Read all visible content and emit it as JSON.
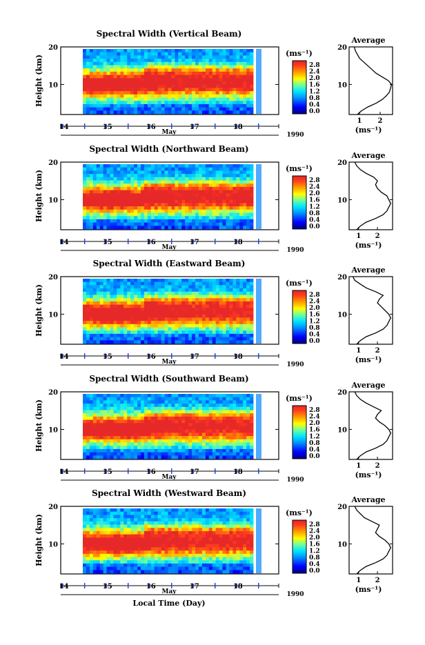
{
  "chart_data": [
    {
      "type": "heatmap",
      "title": "Spectral Width (Vertical Beam)",
      "ylabel": "Height (km)",
      "month_label": "May",
      "year_label": "1990",
      "x_ticks": [
        "14",
        "15",
        "16",
        "17",
        "18"
      ],
      "y_ticks": [
        "20",
        "10"
      ],
      "xlim": [
        14,
        18.5
      ],
      "ylim": [
        2,
        20
      ],
      "grid": false,
      "colorbar_unit": "(ms⁻¹)",
      "colorbar_ticks": [
        "2.8",
        "2.4",
        "2.0",
        "1.6",
        "1.2",
        "0.8",
        "0.4",
        "0.0"
      ],
      "colorbar_range": [
        0,
        2.8
      ],
      "profile": {
        "title": "Average",
        "x_ticks": [
          "1",
          "2"
        ],
        "xlabel": "(ms⁻¹)",
        "xlim": [
          0.5,
          2.6
        ],
        "y_ticks": [
          "20",
          "10"
        ],
        "height": [
          2,
          3,
          4,
          5,
          6,
          7,
          8,
          9,
          10,
          11,
          12,
          13,
          14,
          15,
          16,
          17,
          18,
          19,
          20
        ],
        "value": [
          0.9,
          1.1,
          1.4,
          1.8,
          2.1,
          2.3,
          2.45,
          2.5,
          2.55,
          2.4,
          2.1,
          1.8,
          1.6,
          1.4,
          1.2,
          1.0,
          0.9,
          0.8,
          0.75
        ]
      }
    },
    {
      "type": "heatmap",
      "title": "Spectral Width (Northward Beam)",
      "ylabel": "Height (km)",
      "month_label": "May",
      "year_label": "1990",
      "x_ticks": [
        "14",
        "15",
        "16",
        "17",
        "18"
      ],
      "y_ticks": [
        "20",
        "10"
      ],
      "xlim": [
        14,
        18.5
      ],
      "ylim": [
        2,
        20
      ],
      "grid": false,
      "colorbar_unit": "(ms⁻¹)",
      "colorbar_ticks": [
        "2.8",
        "2.4",
        "2.0",
        "1.6",
        "1.2",
        "0.8",
        "0.4",
        "0.0"
      ],
      "colorbar_range": [
        0,
        2.8
      ],
      "profile": {
        "title": "Average",
        "x_ticks": [
          "1",
          "2"
        ],
        "xlabel": "(ms⁻¹)",
        "xlim": [
          0.5,
          2.8
        ],
        "y_ticks": [
          "20",
          "10"
        ],
        "height": [
          2,
          3,
          4,
          5,
          6,
          7,
          8,
          9,
          10,
          11,
          12,
          13,
          14,
          15,
          16,
          17,
          18,
          19,
          20
        ],
        "value": [
          0.9,
          1.1,
          1.4,
          1.9,
          2.3,
          2.5,
          2.6,
          2.7,
          2.6,
          2.5,
          2.2,
          2.0,
          1.9,
          2.0,
          1.8,
          1.4,
          1.1,
          0.9,
          0.8
        ]
      }
    },
    {
      "type": "heatmap",
      "title": "Spectral Width (Eastward Beam)",
      "ylabel": "Height (km)",
      "month_label": "May",
      "year_label": "1990",
      "x_ticks": [
        "14",
        "15",
        "16",
        "17",
        "18"
      ],
      "y_ticks": [
        "20",
        "10"
      ],
      "xlim": [
        14,
        18.5
      ],
      "ylim": [
        2,
        20
      ],
      "grid": false,
      "colorbar_unit": "(ms⁻¹)",
      "colorbar_ticks": [
        "2.8",
        "2.4",
        "2.0",
        "1.6",
        "1.2",
        "0.8",
        "0.4",
        "0.0"
      ],
      "colorbar_range": [
        0,
        2.8
      ],
      "profile": {
        "title": "Average",
        "x_ticks": [
          "1",
          "2"
        ],
        "xlabel": "(ms⁻¹)",
        "xlim": [
          0.5,
          2.8
        ],
        "y_ticks": [
          "20",
          "10"
        ],
        "height": [
          2,
          3,
          4,
          5,
          6,
          7,
          8,
          9,
          10,
          11,
          12,
          13,
          14,
          15,
          16,
          17,
          18,
          19,
          20
        ],
        "value": [
          0.9,
          1.1,
          1.4,
          1.9,
          2.3,
          2.5,
          2.6,
          2.7,
          2.6,
          2.4,
          2.2,
          2.0,
          2.1,
          2.3,
          1.9,
          1.4,
          1.1,
          0.8,
          0.7
        ]
      }
    },
    {
      "type": "heatmap",
      "title": "Spectral Width (Southward Beam)",
      "ylabel": "Height (km)",
      "month_label": "May",
      "year_label": "1990",
      "x_ticks": [
        "14",
        "15",
        "16",
        "17",
        "18"
      ],
      "y_ticks": [
        "20",
        "10"
      ],
      "xlim": [
        14,
        18.5
      ],
      "ylim": [
        2,
        20
      ],
      "grid": false,
      "colorbar_unit": "(ms⁻¹)",
      "colorbar_ticks": [
        "2.8",
        "2.4",
        "2.0",
        "1.6",
        "1.2",
        "0.8",
        "0.4",
        "0.0"
      ],
      "colorbar_range": [
        0,
        2.8
      ],
      "profile": {
        "title": "Average",
        "x_ticks": [
          "1",
          "2"
        ],
        "xlabel": "(ms⁻¹)",
        "xlim": [
          0.5,
          2.8
        ],
        "y_ticks": [
          "20",
          "10"
        ],
        "height": [
          2,
          3,
          4,
          5,
          6,
          7,
          8,
          9,
          10,
          11,
          12,
          13,
          14,
          15,
          16,
          17,
          18,
          19,
          20
        ],
        "value": [
          0.9,
          1.1,
          1.4,
          1.9,
          2.3,
          2.5,
          2.6,
          2.7,
          2.6,
          2.4,
          2.1,
          1.9,
          2.0,
          2.2,
          1.8,
          1.4,
          1.1,
          0.9,
          0.8
        ]
      }
    },
    {
      "type": "heatmap",
      "title": "Spectral Width (Westward Beam)",
      "ylabel": "Height (km)",
      "month_label": "May",
      "year_label": "1990",
      "x_ticks": [
        "14",
        "15",
        "16",
        "17",
        "18"
      ],
      "y_ticks": [
        "20",
        "10"
      ],
      "xlim": [
        14,
        18.5
      ],
      "ylim": [
        2,
        20
      ],
      "grid": false,
      "colorbar_unit": "(ms⁻¹)",
      "colorbar_ticks": [
        "2.8",
        "2.4",
        "2.0",
        "1.6",
        "1.2",
        "0.8",
        "0.4",
        "0.0"
      ],
      "colorbar_range": [
        0,
        2.8
      ],
      "profile": {
        "title": "Average",
        "x_ticks": [
          "1",
          "2"
        ],
        "xlabel": "(ms⁻¹)",
        "xlim": [
          0.5,
          2.8
        ],
        "y_ticks": [
          "20",
          "10"
        ],
        "height": [
          2,
          3,
          4,
          5,
          6,
          7,
          8,
          9,
          10,
          11,
          12,
          13,
          14,
          15,
          16,
          17,
          18,
          19,
          20
        ],
        "value": [
          0.9,
          1.1,
          1.4,
          1.9,
          2.3,
          2.5,
          2.6,
          2.7,
          2.6,
          2.4,
          2.1,
          1.9,
          2.0,
          2.1,
          1.7,
          1.3,
          1.1,
          0.9,
          0.8
        ]
      }
    }
  ],
  "footer": {
    "xlabel": "Local Time (Day)"
  }
}
